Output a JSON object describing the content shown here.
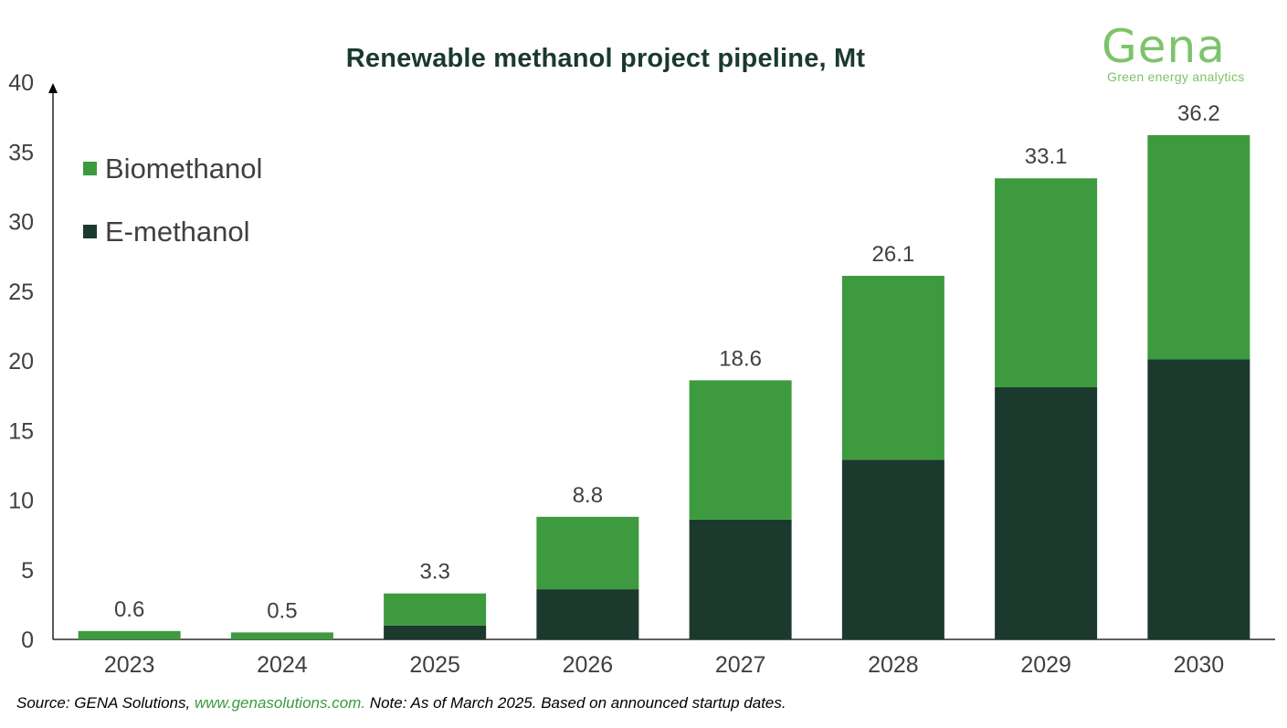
{
  "header": {
    "title": "Renewable methanol project pipeline, Mt"
  },
  "logo": {
    "word": "Gena",
    "tagline": "Green energy analytics",
    "color": "#7dc36b"
  },
  "footer": {
    "source_prefix": "Source: GENA Solutions, ",
    "source_link": "www.genasolutions.com.",
    "source_note": " Note: As of March 2025. Based on announced startup dates."
  },
  "chart_data": {
    "type": "bar",
    "stacked": true,
    "title": "Renewable methanol project pipeline, Mt",
    "categories": [
      "2023",
      "2024",
      "2025",
      "2026",
      "2027",
      "2028",
      "2029",
      "2030"
    ],
    "series": [
      {
        "name": "E-methanol",
        "color": "#1b3a2d",
        "values": [
          0,
          0,
          1.0,
          3.6,
          8.6,
          12.9,
          18.1,
          20.1
        ]
      },
      {
        "name": "Biomethanol",
        "color": "#3d9a3f",
        "values": [
          0.6,
          0.5,
          2.3,
          5.2,
          10.0,
          13.2,
          15.0,
          16.1
        ]
      }
    ],
    "totals": [
      "0.6",
      "0.5",
      "3.3",
      "8.8",
      "18.6",
      "26.1",
      "33.1",
      "36.2"
    ],
    "legend": [
      "Biomethanol",
      "E-methanol"
    ],
    "legend_position": "top-left",
    "ylim": [
      0,
      40
    ],
    "yticks": [
      0,
      5,
      10,
      15,
      20,
      25,
      30,
      35,
      40
    ],
    "xlabel": "",
    "ylabel": "",
    "grid": false
  }
}
